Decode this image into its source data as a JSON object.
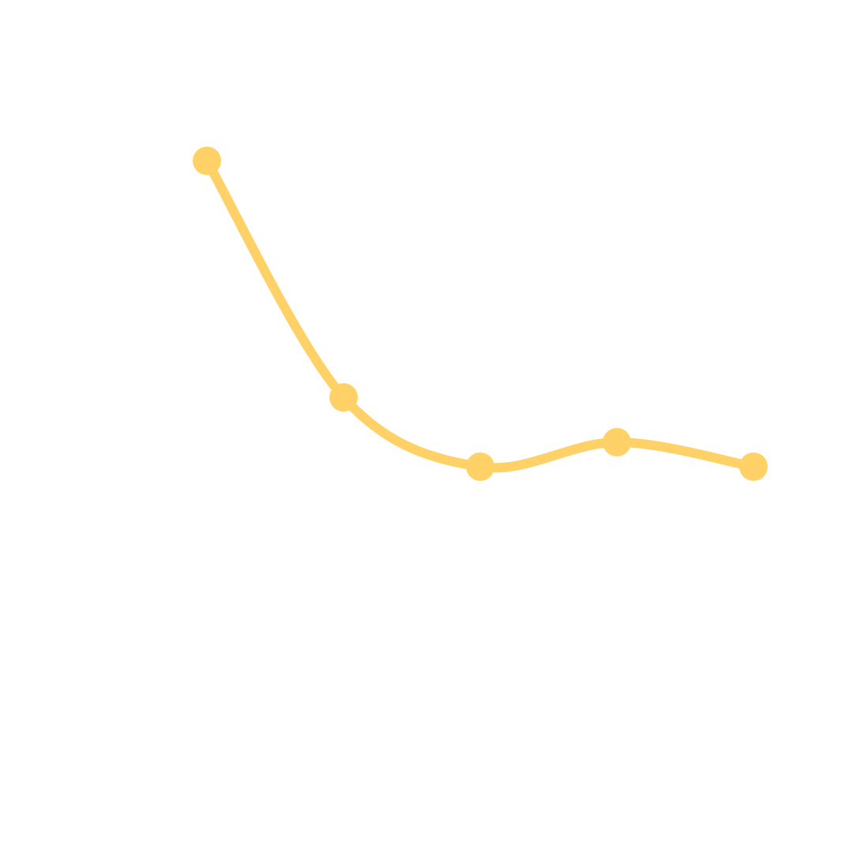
{
  "chart_data": {
    "type": "line",
    "x": [
      1,
      2,
      3,
      4,
      5
    ],
    "series": [
      {
        "values": [
          100,
          42,
          25,
          31,
          25
        ]
      }
    ],
    "xlim": [
      1,
      5
    ],
    "ylim": [
      0,
      110
    ],
    "axes_visible": false,
    "grid": false,
    "legend": "none",
    "line_style": "smooth",
    "markers": true,
    "colors": {
      "series": "#FFD166"
    }
  }
}
